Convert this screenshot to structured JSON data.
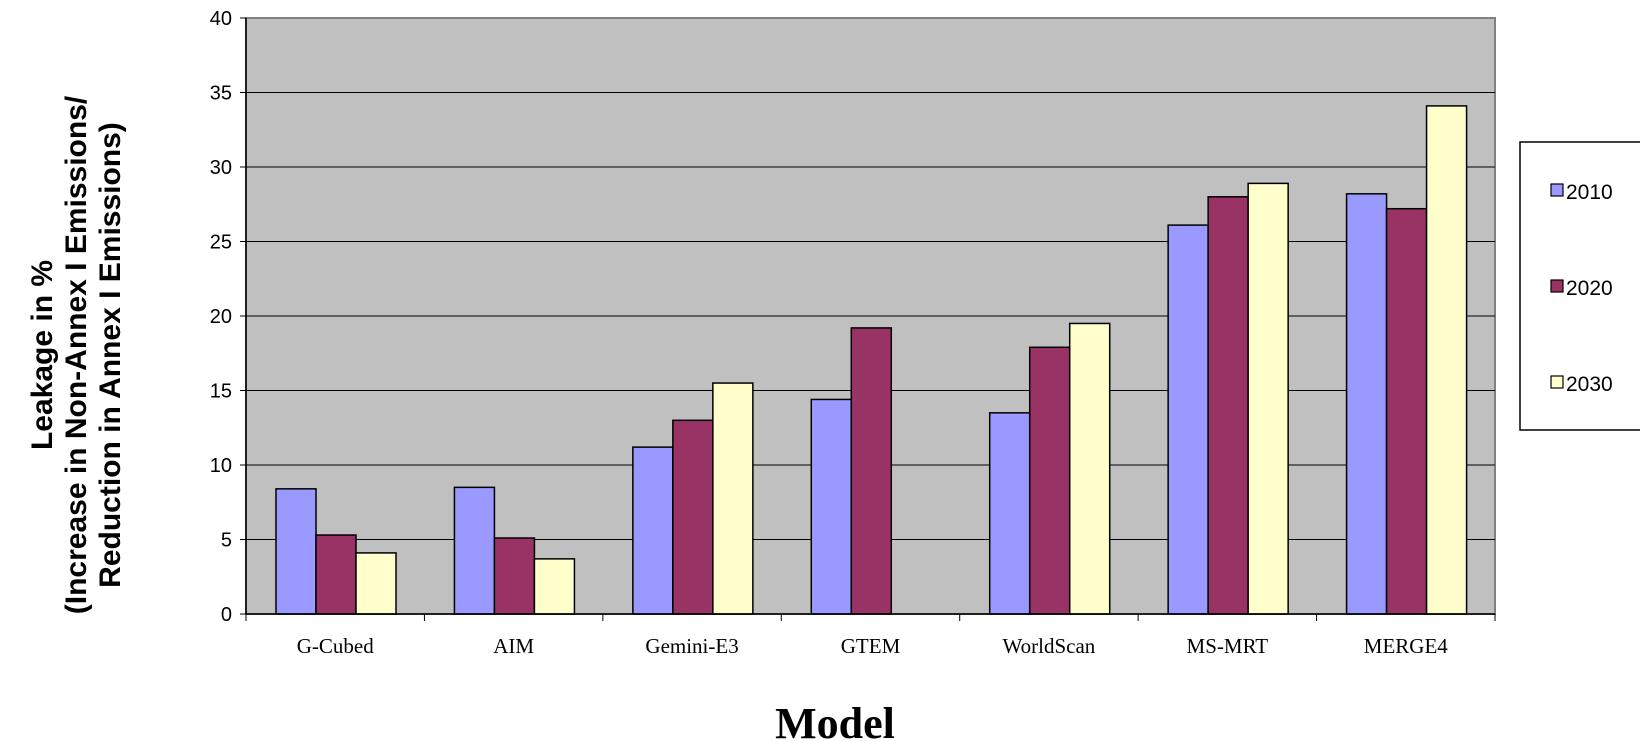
{
  "chart_data": {
    "type": "bar",
    "categories": [
      "G-Cubed",
      "AIM",
      "Gemini-E3",
      "GTEM",
      "WorldScan",
      "MS-MRT",
      "MERGE4"
    ],
    "series": [
      {
        "name": "2010",
        "color": "#9999ff",
        "values": [
          8.4,
          8.5,
          11.2,
          14.4,
          13.5,
          26.1,
          28.2
        ]
      },
      {
        "name": "2020",
        "color": "#993366",
        "values": [
          5.3,
          5.1,
          13.0,
          19.2,
          17.9,
          28.0,
          27.2
        ]
      },
      {
        "name": "2030",
        "color": "#ffffcc",
        "values": [
          4.1,
          3.7,
          15.5,
          null,
          19.5,
          28.9,
          34.1
        ]
      }
    ],
    "ylim": [
      0,
      40
    ],
    "yticks": [
      0,
      5,
      10,
      15,
      20,
      25,
      30,
      35,
      40
    ],
    "ylabel_lines": [
      "Leakage in %",
      "(Increase in Non-Annex I Emissions/",
      "Reduction in Annex I Emissions)"
    ],
    "xlabel": "Model",
    "legend_position": "right",
    "plot_background": "#c0c0c0",
    "grid": true
  }
}
